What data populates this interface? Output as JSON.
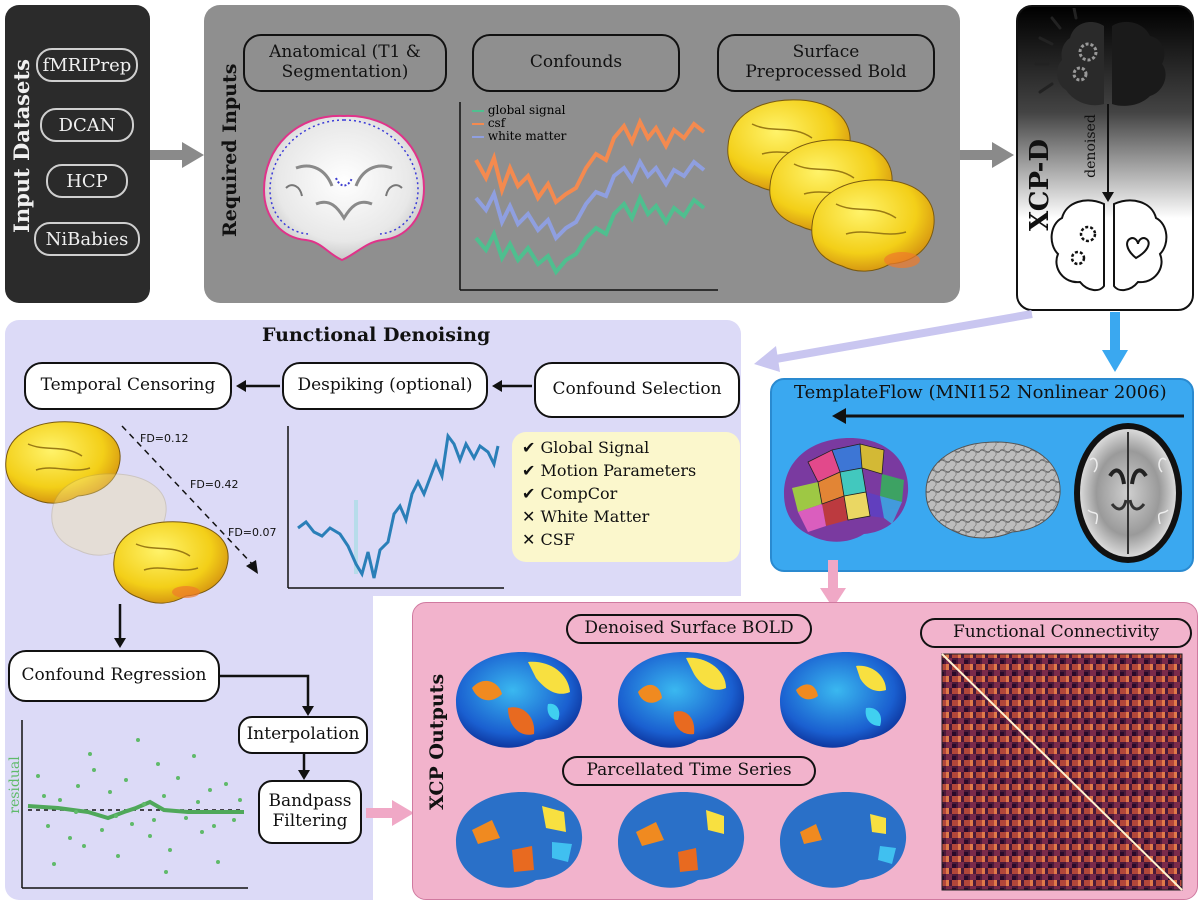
{
  "input_datasets": {
    "title": "Input Datasets",
    "items": [
      "fMRIPrep",
      "DCAN",
      "HCP",
      "NiBabies"
    ]
  },
  "required_inputs": {
    "title": "Required Inputs",
    "anatomical": "Anatomical (T1 & Segmentation)",
    "confounds": "Confounds",
    "surface_bold": "Surface Preprocessed Bold",
    "legend": [
      {
        "name": "global signal",
        "color": "#4fbf8f"
      },
      {
        "name": "csf",
        "color": "#f48a4f"
      },
      {
        "name": "white matter",
        "color": "#8f9fe0"
      }
    ]
  },
  "xcpd": {
    "title": "XCP-D",
    "denoised": "denoised"
  },
  "functional_denoising": {
    "title": "Functional Denoising",
    "temporal_censoring": "Temporal Censoring",
    "despiking": "Despiking (optional)",
    "confound_selection": "Confound Selection",
    "fd_values": [
      "FD=0.12",
      "FD=0.42",
      "FD=0.07"
    ],
    "confound_list": [
      {
        "mark": "✔",
        "label": "Global Signal"
      },
      {
        "mark": "✔",
        "label": "Motion Parameters"
      },
      {
        "mark": "✔",
        "label": "CompCor"
      },
      {
        "mark": "✕",
        "label": "White Matter"
      },
      {
        "mark": "✕",
        "label": "CSF"
      }
    ],
    "confound_regression": "Confound Regression",
    "interpolation": "Interpolation",
    "bandpass": "Bandpass Filtering",
    "residual_label": "residual"
  },
  "templateflow": {
    "title": "TemplateFlow (MNI152 Nonlinear 2006)"
  },
  "xcp_outputs": {
    "title": "XCP Outputs",
    "denoised_surface": "Denoised Surface BOLD",
    "parcellated": "Parcellated Time Series",
    "connectivity": "Functional Connectivity"
  },
  "colors": {
    "input_panel": "#2b2b2b",
    "required_panel": "#8f8f8f",
    "denoise_panel": "#dcdaf7",
    "templateflow_panel": "#3aa8f0",
    "outputs_panel": "#f2b3cc",
    "arrow_gray": "#8a8a8a",
    "arrow_pink": "#f0a8c6",
    "arrow_blue": "#3aa8f0",
    "arrow_lavender": "#c9c6f0"
  }
}
